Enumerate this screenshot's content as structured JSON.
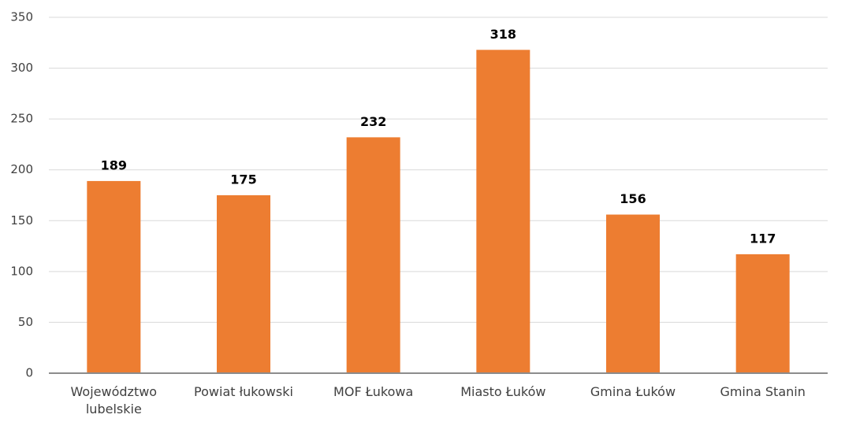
{
  "chart_data": {
    "type": "bar",
    "categories": [
      "Województwo lubelskie",
      "Powiat łukowski",
      "MOF Łukowa",
      "Miasto Łuków",
      "Gmina Łuków",
      "Gmina Stanin"
    ],
    "values": [
      189,
      175,
      232,
      318,
      156,
      117
    ],
    "color": "#ed7d31",
    "ylim": [
      0,
      350
    ],
    "yticks": [
      0,
      50,
      100,
      150,
      200,
      250,
      300,
      350
    ],
    "grid": true
  }
}
